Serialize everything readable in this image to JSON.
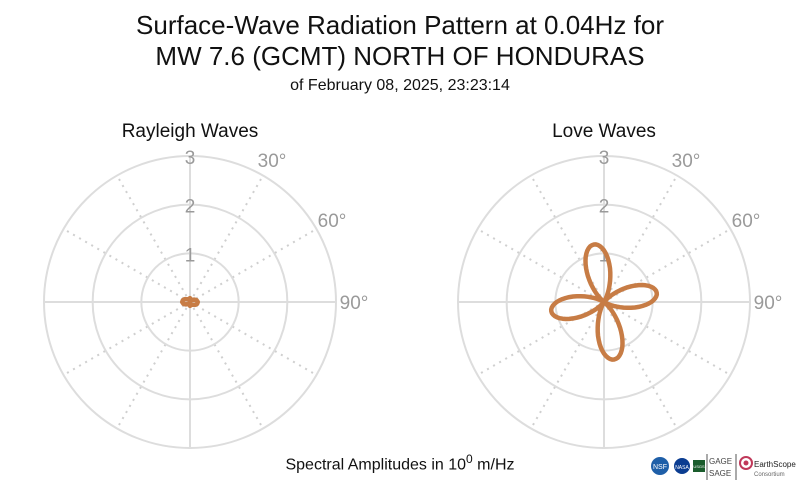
{
  "title_line1": "Surface-Wave Radiation Pattern at 0.04Hz for",
  "title_line2": "MW 7.6 (GCMT) NORTH OF HONDURAS",
  "subtitle": "of February 08, 2025, 23:23:14",
  "footer": {
    "prefix": "Spectral Amplitudes in 10",
    "exponent": "0",
    "suffix": " m/Hz"
  },
  "logos": {
    "gage": "GAGE",
    "sage": "SAGE",
    "earthscope": "EarthScope",
    "consortium": "Consortium",
    "nsf": "NSF",
    "nasa": "NASA",
    "usgs": "USGS"
  },
  "colors": {
    "curve": "#c77c45",
    "grid": "#dddddd",
    "label": "#9a9a9a"
  },
  "chart_data": [
    {
      "type": "polar",
      "title": "Rayleigh Waves",
      "radial_ticks": [
        1,
        2,
        3
      ],
      "rlim": [
        0,
        3
      ],
      "angle_tick_labels": [
        "30°",
        "60°",
        "90°"
      ],
      "angle_ticks_deg": [
        30,
        60,
        90
      ],
      "grid": true,
      "series": [
        {
          "theta_deg": [
            0,
            15,
            30,
            45,
            60,
            75,
            90,
            105,
            120,
            135,
            150,
            165,
            180,
            195,
            210,
            225,
            240,
            255,
            270,
            285,
            300,
            315,
            330,
            345,
            360
          ],
          "r": [
            0.08,
            0.05,
            0.04,
            0.06,
            0.1,
            0.14,
            0.16,
            0.15,
            0.12,
            0.08,
            0.06,
            0.07,
            0.08,
            0.05,
            0.04,
            0.06,
            0.1,
            0.14,
            0.16,
            0.15,
            0.12,
            0.08,
            0.06,
            0.07,
            0.08
          ]
        }
      ]
    },
    {
      "type": "polar",
      "title": "Love Waves",
      "radial_ticks": [
        1,
        2,
        3
      ],
      "rlim": [
        0,
        3
      ],
      "angle_tick_labels": [
        "30°",
        "60°",
        "90°"
      ],
      "angle_ticks_deg": [
        30,
        60,
        90
      ],
      "grid": true,
      "series": [
        {
          "lobe_peaks_deg": [
            -10,
            80,
            170,
            260
          ],
          "lobe_peak_values": [
            1.2,
            1.1,
            1.2,
            1.1
          ]
        }
      ]
    }
  ]
}
